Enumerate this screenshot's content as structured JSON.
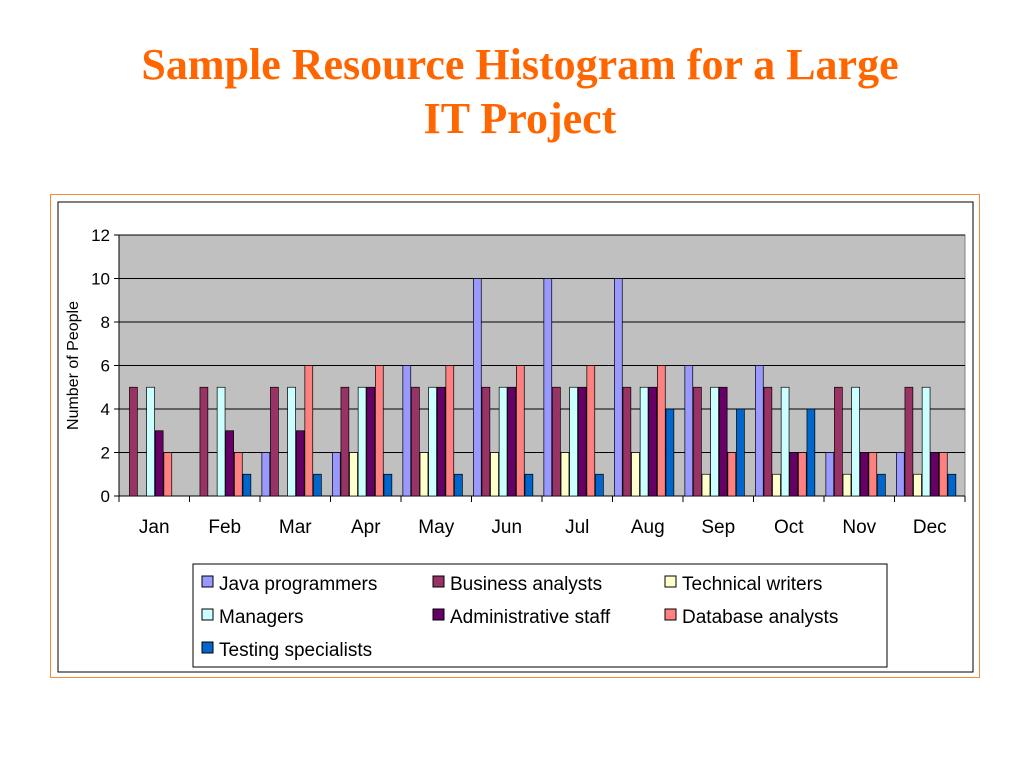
{
  "slide": {
    "title_line1": "Sample Resource Histogram for a Large",
    "title_line2": "IT Project",
    "title_color": "#ff6600"
  },
  "chart_data": {
    "type": "bar",
    "title": "",
    "xlabel": "",
    "ylabel": "Number of People",
    "ylim": [
      0,
      12
    ],
    "yticks": [
      "0",
      "2",
      "4",
      "6",
      "8",
      "10",
      "12"
    ],
    "grid": true,
    "legend_position": "bottom",
    "plot_background": "#c0c0c0",
    "categories": [
      "Jan",
      "Feb",
      "Mar",
      "Apr",
      "May",
      "Jun",
      "Jul",
      "Aug",
      "Sep",
      "Oct",
      "Nov",
      "Dec"
    ],
    "series": [
      {
        "name": "Java programmers",
        "color": "#9999ff",
        "values": [
          0,
          0,
          2,
          2,
          6,
          10,
          10,
          10,
          6,
          6,
          2,
          2
        ]
      },
      {
        "name": "Business analysts",
        "color": "#993366",
        "values": [
          5,
          5,
          5,
          5,
          5,
          5,
          5,
          5,
          5,
          5,
          5,
          5
        ]
      },
      {
        "name": "Technical writers",
        "color": "#ffffcc",
        "values": [
          0,
          0,
          0,
          2,
          2,
          2,
          2,
          2,
          1,
          1,
          1,
          1
        ]
      },
      {
        "name": "Managers",
        "color": "#ccffff",
        "values": [
          5,
          5,
          5,
          5,
          5,
          5,
          5,
          5,
          5,
          5,
          5,
          5
        ]
      },
      {
        "name": "Administrative staff",
        "color": "#660066",
        "values": [
          3,
          3,
          3,
          5,
          5,
          5,
          5,
          5,
          5,
          2,
          2,
          2
        ]
      },
      {
        "name": "Database analysts",
        "color": "#ff8080",
        "values": [
          2,
          2,
          6,
          6,
          6,
          6,
          6,
          6,
          2,
          2,
          2,
          2
        ]
      },
      {
        "name": "Testing specialists",
        "color": "#0066cc",
        "values": [
          0,
          1,
          1,
          1,
          1,
          1,
          1,
          4,
          4,
          4,
          1,
          1
        ]
      }
    ]
  }
}
